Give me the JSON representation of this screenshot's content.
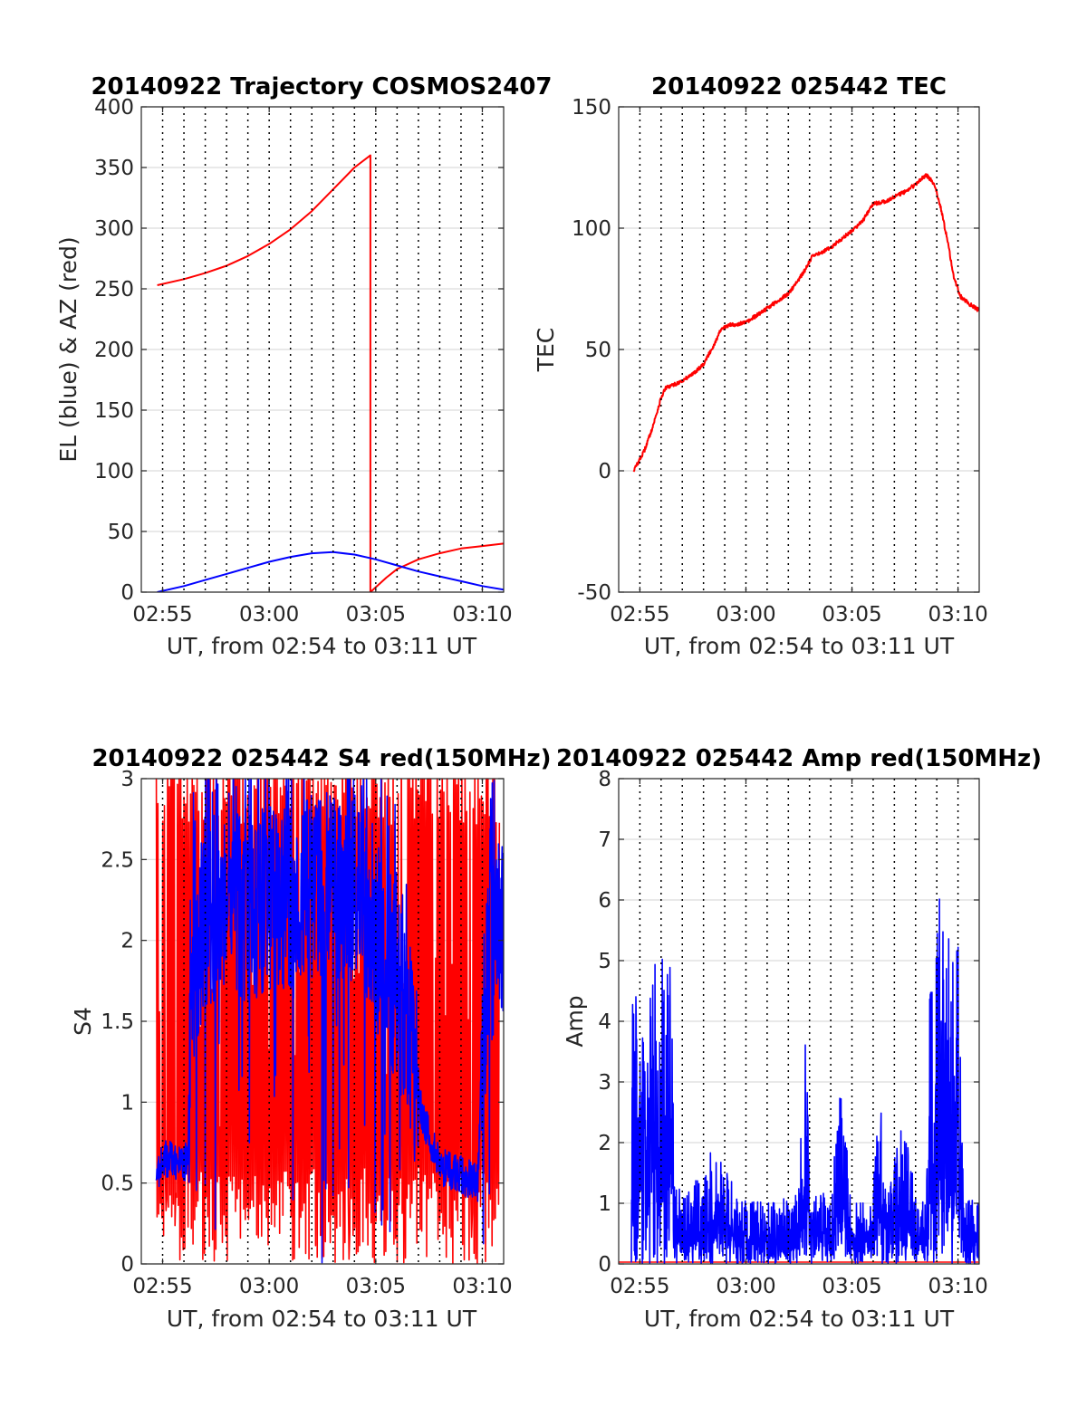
{
  "colors": {
    "red": "#ff0000",
    "blue": "#0000ff",
    "background": "#ffffff"
  },
  "chart_data": [
    {
      "type": "line",
      "title": "20140922 Trajectory COSMOS2407",
      "xlabel": "UT, from 02:54 to 03:11 UT",
      "ylabel": "EL (blue) & AZ (red)",
      "x_unit": "minutes after 02:54 UT",
      "xlim": [
        0,
        17
      ],
      "ylim": [
        0,
        400
      ],
      "yticks": [
        0,
        50,
        100,
        150,
        200,
        250,
        300,
        350,
        400
      ],
      "xticks": [
        1,
        6,
        11,
        16
      ],
      "xtick_labels": [
        "02:55",
        "03:00",
        "03:05",
        "03:10"
      ],
      "grid": "horizontal solid, vertical dotted every minute",
      "series": [
        {
          "color": "#ff0000",
          "points": [
            [
              0.75,
              253
            ],
            [
              2,
              258
            ],
            [
              3,
              263
            ],
            [
              4,
              269
            ],
            [
              5,
              277
            ],
            [
              6,
              287
            ],
            [
              7,
              299
            ],
            [
              8,
              314
            ],
            [
              9,
              332
            ],
            [
              10,
              350
            ],
            [
              10.75,
              360
            ],
            [
              10.75,
              0
            ],
            [
              11.5,
              12
            ],
            [
              12,
              19
            ],
            [
              13,
              27
            ],
            [
              14,
              32
            ],
            [
              15,
              36
            ],
            [
              16,
              38
            ],
            [
              17,
              40
            ]
          ]
        },
        {
          "color": "#0000ff",
          "points": [
            [
              0.75,
              0
            ],
            [
              2,
              5
            ],
            [
              3,
              10
            ],
            [
              4,
              15
            ],
            [
              5,
              20
            ],
            [
              6,
              25
            ],
            [
              7,
              29
            ],
            [
              8,
              32
            ],
            [
              9,
              33
            ],
            [
              10,
              31
            ],
            [
              11,
              27
            ],
            [
              12,
              22
            ],
            [
              13,
              17
            ],
            [
              14,
              13
            ],
            [
              15,
              9
            ],
            [
              16,
              5
            ],
            [
              17,
              2
            ]
          ]
        }
      ]
    },
    {
      "type": "line",
      "title": "20140922 025442 TEC",
      "xlabel": "UT, from 02:54 to 03:11 UT",
      "ylabel": "TEC",
      "x_unit": "minutes after 02:54 UT",
      "xlim": [
        0,
        17
      ],
      "ylim": [
        -50,
        150
      ],
      "yticks": [
        -50,
        0,
        50,
        100,
        150
      ],
      "xticks": [
        1,
        6,
        11,
        16
      ],
      "xtick_labels": [
        "02:55",
        "03:00",
        "03:05",
        "03:10"
      ],
      "grid": "horizontal solid, vertical dotted every minute",
      "series": [
        {
          "color": "#ff0000",
          "points": [
            [
              0.7,
              0
            ],
            [
              1.2,
              8
            ],
            [
              1.6,
              18
            ],
            [
              2,
              30
            ],
            [
              2.2,
              34
            ],
            [
              3,
              37
            ],
            [
              3.5,
              40
            ],
            [
              4,
              44
            ],
            [
              4.5,
              52
            ],
            [
              4.8,
              58
            ],
            [
              5.2,
              60
            ],
            [
              6,
              61
            ],
            [
              7,
              67
            ],
            [
              8,
              73
            ],
            [
              8.5,
              79
            ],
            [
              8.8,
              83
            ],
            [
              9.1,
              88
            ],
            [
              10,
              92
            ],
            [
              11,
              99
            ],
            [
              11.5,
              103
            ],
            [
              12,
              110
            ],
            [
              12.6,
              111
            ],
            [
              13,
              113
            ],
            [
              13.5,
              115
            ],
            [
              14,
              118
            ],
            [
              14.5,
              122
            ],
            [
              14.9,
              118
            ],
            [
              15.2,
              108
            ],
            [
              15.5,
              95
            ],
            [
              15.8,
              80
            ],
            [
              16.1,
              72
            ],
            [
              16.5,
              69
            ],
            [
              17,
              66
            ]
          ]
        }
      ]
    },
    {
      "type": "line",
      "title": "20140922 025442 S4 red(150MHz)",
      "xlabel": "UT, from 02:54 to 03:11 UT",
      "ylabel": "S4",
      "x_unit": "minutes after 02:54 UT",
      "xlim": [
        0,
        17
      ],
      "ylim": [
        0,
        3
      ],
      "yticks": [
        0,
        0.5,
        1,
        1.5,
        2,
        2.5,
        3
      ],
      "xticks": [
        1,
        6,
        11,
        16
      ],
      "xtick_labels": [
        "02:55",
        "03:00",
        "03:05",
        "03:10"
      ],
      "grid": "horizontal solid, vertical dotted every minute",
      "series": [
        {
          "color": "#ff0000",
          "description": "dense noise filling the range 0 to 3 between 02:55 and 03:10",
          "x_range": [
            0.7,
            16.8
          ],
          "y_range": [
            0,
            3
          ]
        },
        {
          "color": "#0000ff",
          "envelope": [
            [
              0.7,
              0.55
            ],
            [
              1,
              0.65
            ],
            [
              1.5,
              0.65
            ],
            [
              2,
              0.62
            ],
            [
              2.2,
              0.65
            ],
            [
              2.3,
              1.7
            ],
            [
              3,
              2.1
            ],
            [
              4,
              2.3
            ],
            [
              5,
              2.2
            ],
            [
              6,
              2.3
            ],
            [
              7,
              2.2
            ],
            [
              8,
              2.3
            ],
            [
              9,
              2.3
            ],
            [
              10,
              2.3
            ],
            [
              11,
              2.1
            ],
            [
              12,
              1.7
            ],
            [
              12.5,
              1.5
            ],
            [
              13,
              1.0
            ],
            [
              14,
              0.6
            ],
            [
              15,
              0.55
            ],
            [
              15.8,
              0.5
            ],
            [
              16,
              1.5
            ],
            [
              16.5,
              2.0
            ],
            [
              17,
              2.0
            ]
          ]
        }
      ]
    },
    {
      "type": "line",
      "title": "20140922 025442 Amp red(150MHz)",
      "xlabel": "UT, from 02:54 to 03:11 UT",
      "ylabel": "Amp",
      "x_unit": "minutes after 02:54 UT",
      "xlim": [
        0,
        17
      ],
      "ylim": [
        0,
        8
      ],
      "yticks": [
        0,
        1,
        2,
        3,
        4,
        5,
        6,
        7,
        8
      ],
      "xticks": [
        1,
        6,
        11,
        16
      ],
      "xtick_labels": [
        "02:55",
        "03:00",
        "03:05",
        "03:10"
      ],
      "grid": "horizontal solid, vertical dotted every minute",
      "series": [
        {
          "color": "#ff0000",
          "points": [
            [
              0,
              0.03
            ],
            [
              17,
              0.03
            ]
          ]
        },
        {
          "color": "#0000ff",
          "envelope": [
            [
              0.6,
              0.1
            ],
            [
              0.65,
              4.5
            ],
            [
              1,
              5.3
            ],
            [
              1.5,
              5.0
            ],
            [
              2,
              5.0
            ],
            [
              2.5,
              5.8
            ],
            [
              2.6,
              1.3
            ],
            [
              3,
              1.2
            ],
            [
              4,
              1.5
            ],
            [
              4.3,
              2.0
            ],
            [
              5,
              1.6
            ],
            [
              6,
              1.1
            ],
            [
              7,
              1.0
            ],
            [
              8,
              1.1
            ],
            [
              8.5,
              1.3
            ],
            [
              8.8,
              4.7
            ],
            [
              9,
              1.1
            ],
            [
              10,
              1.2
            ],
            [
              10.4,
              3.1
            ],
            [
              11,
              1.1
            ],
            [
              12,
              1.0
            ],
            [
              12.2,
              3.7
            ],
            [
              12.6,
              1.2
            ],
            [
              13.5,
              2.5
            ],
            [
              14,
              1.1
            ],
            [
              14.5,
              1.0
            ],
            [
              14.7,
              5.0
            ],
            [
              15,
              5.5
            ],
            [
              15.2,
              6.7
            ],
            [
              15.6,
              5.5
            ],
            [
              16,
              5.5
            ],
            [
              16.3,
              1.2
            ],
            [
              17,
              1.1
            ]
          ]
        }
      ]
    }
  ]
}
